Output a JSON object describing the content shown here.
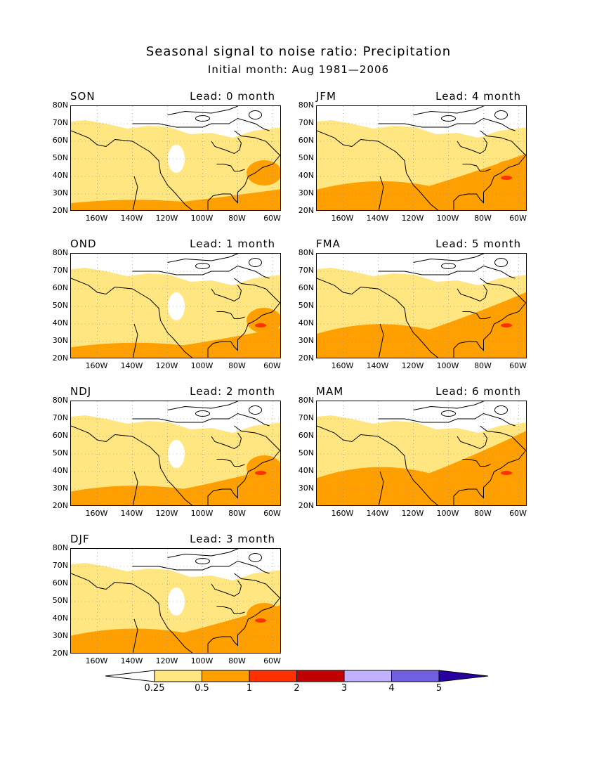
{
  "title": "Seasonal signal to noise ratio: Precipitation",
  "subtitle": "Initial month: Aug 1981—2006",
  "panels": [
    {
      "season": "SON",
      "lead": "Lead: 0 month"
    },
    {
      "season": "JFM",
      "lead": "Lead: 4 month"
    },
    {
      "season": "OND",
      "lead": "Lead: 1 month"
    },
    {
      "season": "FMA",
      "lead": "Lead: 5 month"
    },
    {
      "season": "NDJ",
      "lead": "Lead: 2 month"
    },
    {
      "season": "MAM",
      "lead": "Lead: 6 month"
    },
    {
      "season": "DJF",
      "lead": "Lead: 3 month"
    }
  ],
  "lat_labels": [
    "80N",
    "70N",
    "60N",
    "50N",
    "40N",
    "30N",
    "20N"
  ],
  "lon_labels": [
    "160W",
    "140W",
    "120W",
    "100W",
    "80W",
    "60W"
  ],
  "colorbar": {
    "labels": [
      "0.25",
      "0.5",
      "1",
      "2",
      "3",
      "4",
      "5"
    ],
    "colors": [
      "#ffffff",
      "#ffe680",
      "#ffa000",
      "#ff3000",
      "#c00000",
      "#c0b0ff",
      "#7060e0",
      "#2800a0"
    ]
  }
}
